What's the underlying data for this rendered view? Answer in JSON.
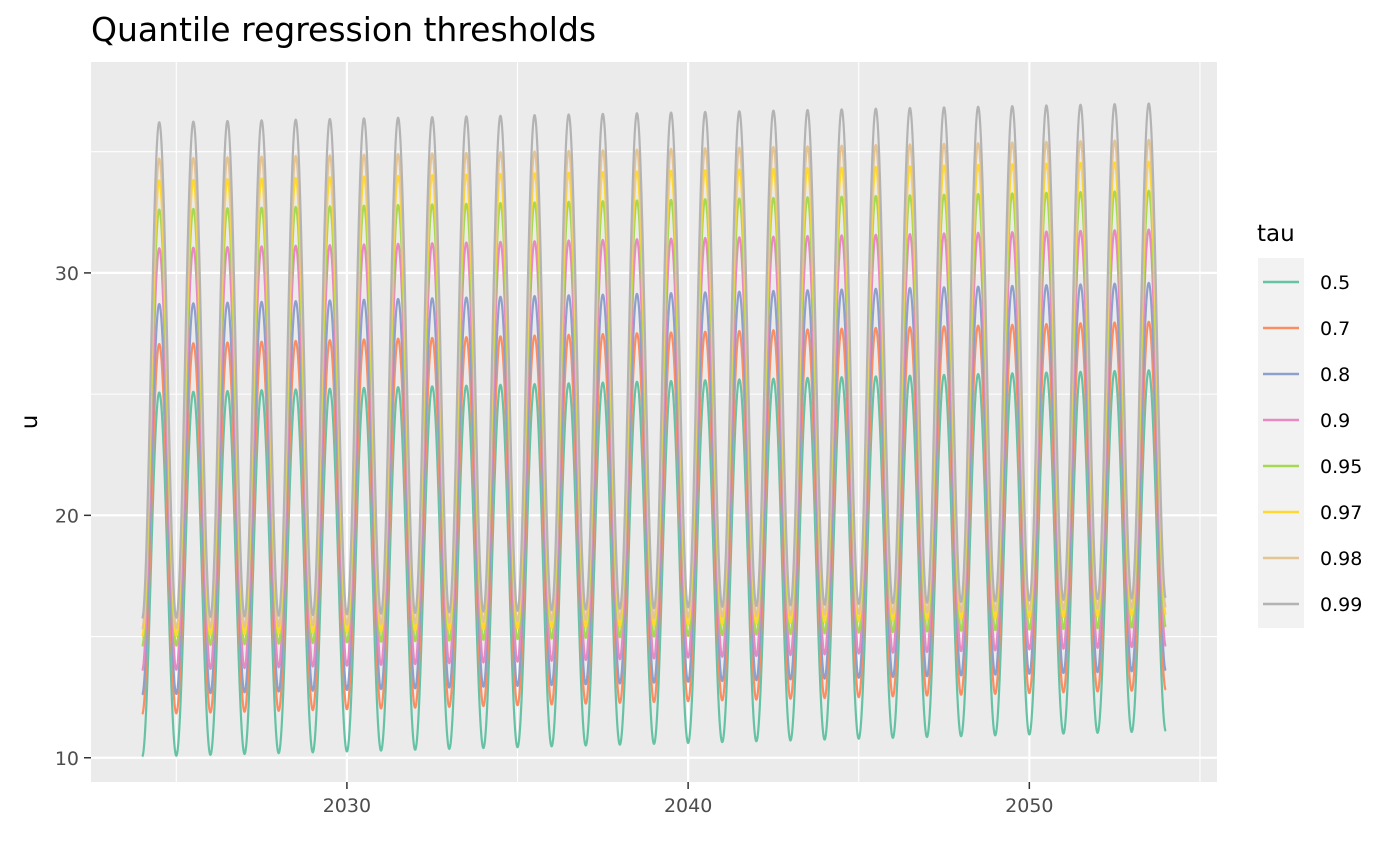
{
  "chart_data": {
    "type": "line",
    "title": "Quantile regression thresholds",
    "xlabel": "",
    "ylabel": "u",
    "x_range": [
      2024.0,
      2054.0
    ],
    "xlim": [
      2022.5,
      2055.5
    ],
    "ylim": [
      9.0,
      38.7
    ],
    "x_ticks": [
      2030,
      2040,
      2050
    ],
    "x_tick_labels": [
      "2030",
      "2040",
      "2050"
    ],
    "y_ticks": [
      10,
      20,
      30
    ],
    "y_tick_labels": [
      "10",
      "20",
      "30"
    ],
    "period_years": 1.0,
    "peak_phase": 0.5,
    "grid": true,
    "background": "#ebebeb",
    "legend": {
      "title": "tau",
      "position": "right"
    },
    "series": [
      {
        "name": "0.5",
        "color": "#66c2a5",
        "min_start": 10.05,
        "min_end": 11.1,
        "max_start": 25.05,
        "max_end": 26.0
      },
      {
        "name": "0.7",
        "color": "#fc8d62",
        "min_start": 11.8,
        "min_end": 12.8,
        "max_start": 27.05,
        "max_end": 28.0
      },
      {
        "name": "0.8",
        "color": "#8da0cb",
        "min_start": 12.6,
        "min_end": 13.6,
        "max_start": 28.7,
        "max_end": 29.6
      },
      {
        "name": "0.9",
        "color": "#e78ac3",
        "min_start": 13.6,
        "min_end": 14.6,
        "max_start": 31.0,
        "max_end": 31.8
      },
      {
        "name": "0.95",
        "color": "#a6d854",
        "min_start": 14.6,
        "min_end": 15.4,
        "max_start": 32.6,
        "max_end": 33.4
      },
      {
        "name": "0.97",
        "color": "#ffd92f",
        "min_start": 15.0,
        "min_end": 15.9,
        "max_start": 33.8,
        "max_end": 34.6
      },
      {
        "name": "0.98",
        "color": "#e5c494",
        "min_start": 15.3,
        "min_end": 16.2,
        "max_start": 34.7,
        "max_end": 35.5
      },
      {
        "name": "0.99",
        "color": "#b3b3b3",
        "min_start": 15.75,
        "min_end": 16.6,
        "max_start": 36.2,
        "max_end": 37.0
      }
    ]
  }
}
